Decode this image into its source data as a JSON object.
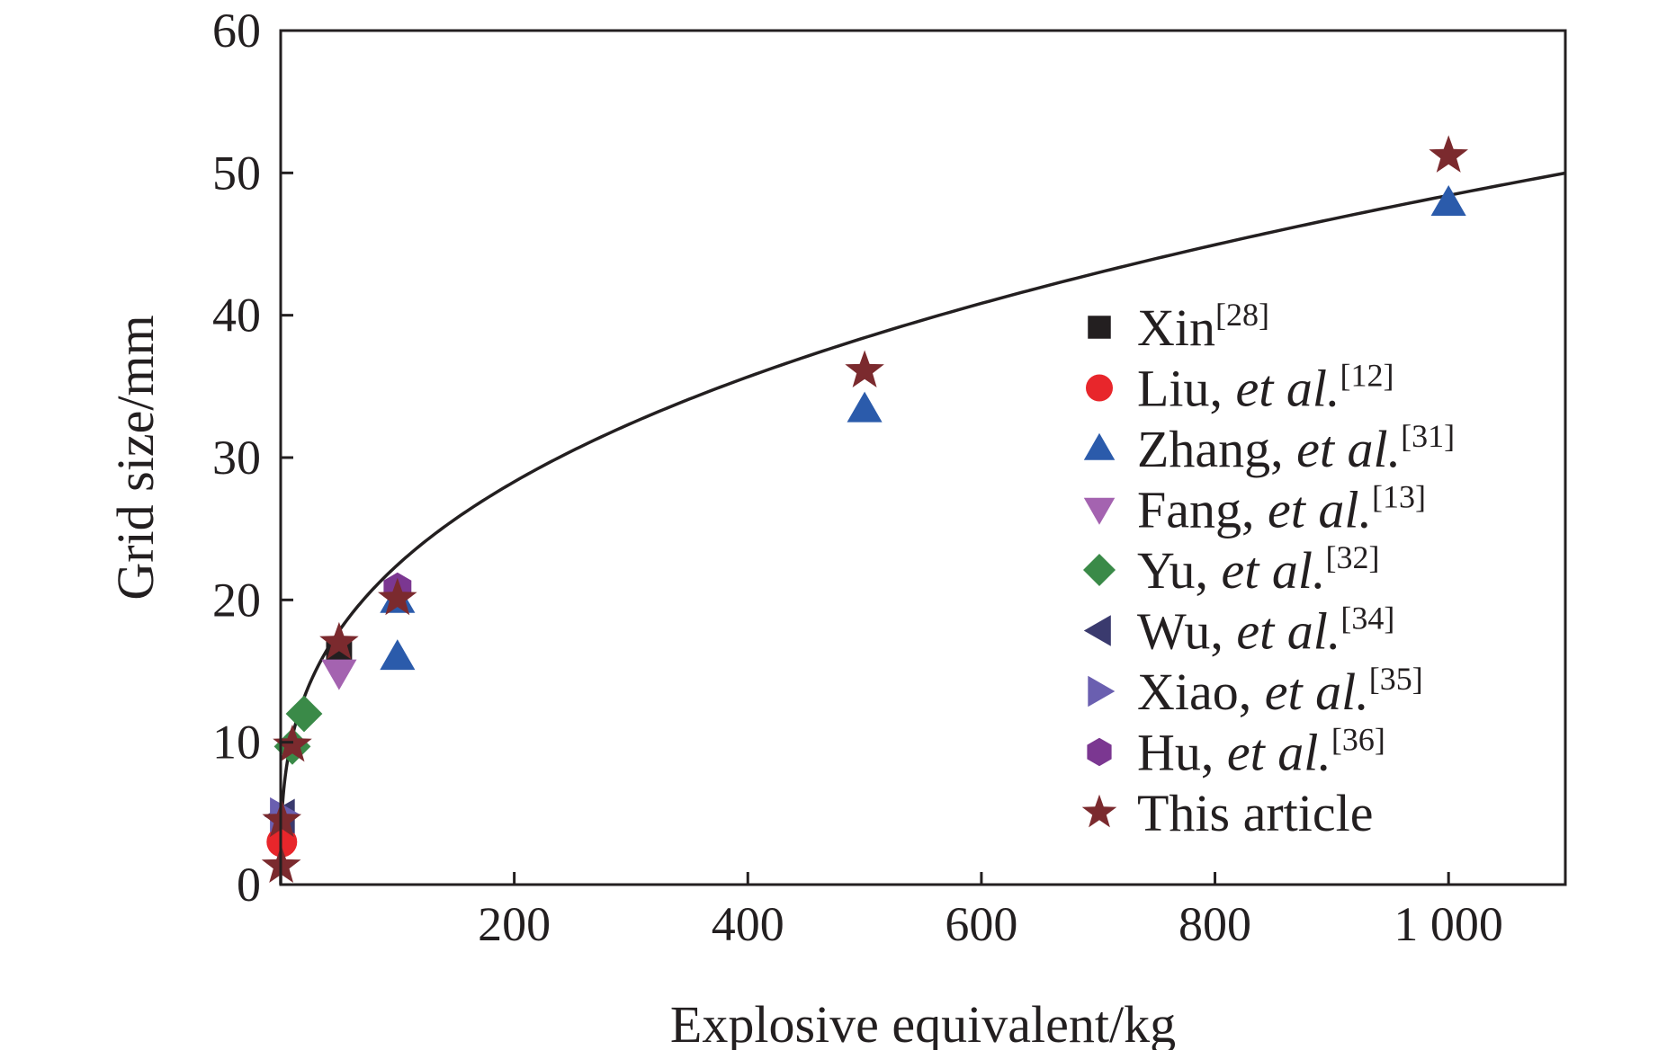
{
  "chart_data": {
    "type": "scatter",
    "xlabel": "Explosive equivalent/kg",
    "ylabel": "Grid size/mm",
    "xlim": [
      0,
      1100
    ],
    "ylim": [
      0,
      60
    ],
    "x_ticks": [
      200,
      400,
      600,
      800,
      1000
    ],
    "x_tick_labels": [
      "200",
      "400",
      "600",
      "800",
      "1 000"
    ],
    "y_ticks": [
      0,
      10,
      20,
      30,
      40,
      50,
      60
    ],
    "y_tick_labels": [
      "0",
      "10",
      "20",
      "30",
      "40",
      "50",
      "60"
    ],
    "grid": false,
    "legend_position": "right",
    "series": [
      {
        "name": "Xin",
        "ref": "[28]",
        "italic": "",
        "marker": "square",
        "color": "#231f20",
        "points": [
          [
            50,
            16.3
          ]
        ]
      },
      {
        "name": "Liu,",
        "ref": "[12]",
        "italic": "et al.",
        "marker": "circle",
        "color": "#e8262b",
        "points": [
          [
            1,
            3.0
          ]
        ]
      },
      {
        "name": "Zhang,",
        "ref": "[31]",
        "italic": "et al.",
        "marker": "triangle-up",
        "color": "#2b5bab",
        "points": [
          [
            100,
            20.0
          ],
          [
            100,
            16.0
          ],
          [
            500,
            33.4
          ],
          [
            1000,
            47.9
          ]
        ]
      },
      {
        "name": "Fang,",
        "ref": "[13]",
        "italic": "et al.",
        "marker": "triangle-down",
        "color": "#a463b0",
        "points": [
          [
            50,
            14.9
          ]
        ]
      },
      {
        "name": "Yu,",
        "ref": "[32]",
        "italic": "et al.",
        "marker": "diamond",
        "color": "#3a8a48",
        "points": [
          [
            20,
            12.0
          ],
          [
            10,
            9.7
          ]
        ]
      },
      {
        "name": "Wu,",
        "ref": "[34]",
        "italic": "et al.",
        "marker": "triangle-left",
        "color": "#3a3a6e",
        "points": [
          [
            1,
            4.8
          ]
        ]
      },
      {
        "name": "Xiao,",
        "ref": "[35]",
        "italic": "et al.",
        "marker": "triangle-right",
        "color": "#6a5fb0",
        "points": [
          [
            2,
            4.9
          ]
        ]
      },
      {
        "name": "Hu,",
        "ref": "[36]",
        "italic": "et al.",
        "marker": "hexagon",
        "color": "#7b3791",
        "points": [
          [
            100,
            20.8
          ]
        ]
      },
      {
        "name": "This article",
        "ref": "",
        "italic": "",
        "marker": "star",
        "color": "#7b2a2e",
        "points": [
          [
            0.5,
            1.3
          ],
          [
            1,
            4.5
          ],
          [
            10,
            9.8
          ],
          [
            50,
            17.0
          ],
          [
            100,
            20.1
          ],
          [
            500,
            36.1
          ],
          [
            1000,
            51.2
          ]
        ]
      }
    ],
    "fit_curve": {
      "color": "#231f20",
      "form": "power",
      "coefficient": 4.83,
      "exponent": 0.3337
    }
  }
}
